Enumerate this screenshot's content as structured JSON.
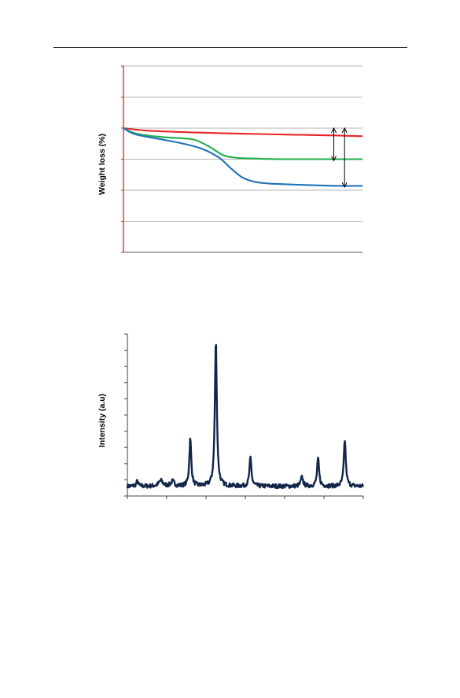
{
  "colors": {
    "red_series": "#e8262a",
    "green_series": "#22ad4a",
    "blue_series": "#1f73b7",
    "xrd_line": "#12264a",
    "grid": "#b3b3b3",
    "axis_red": "#cc2b2b"
  },
  "chart_data": [
    {
      "type": "line",
      "title": "",
      "xlabel": "",
      "ylabel": "Weight loss (%)",
      "grid": true,
      "xlim": [
        0,
        100
      ],
      "ylim": [
        0,
        6
      ],
      "series": [
        {
          "color": "red",
          "x": [
            0,
            10,
            30,
            50,
            70,
            90,
            100
          ],
          "y": [
            4.0,
            3.92,
            3.86,
            3.82,
            3.79,
            3.76,
            3.74
          ]
        },
        {
          "color": "green",
          "x": [
            0,
            5,
            15,
            25,
            30,
            36,
            42,
            48,
            55,
            65,
            80,
            100
          ],
          "y": [
            4.0,
            3.83,
            3.72,
            3.67,
            3.62,
            3.4,
            3.12,
            3.04,
            3.02,
            3.0,
            3.0,
            3.0
          ]
        },
        {
          "color": "blue",
          "x": [
            0,
            5,
            15,
            25,
            33,
            40,
            45,
            50,
            55,
            60,
            65,
            72,
            80,
            90,
            100
          ],
          "y": [
            4.0,
            3.8,
            3.65,
            3.5,
            3.33,
            3.05,
            2.7,
            2.4,
            2.27,
            2.22,
            2.2,
            2.18,
            2.16,
            2.14,
            2.14
          ]
        }
      ],
      "annotations": [
        {
          "type": "double-arrow",
          "x": 88,
          "y_from": 4.0,
          "y_to": 2.95
        },
        {
          "type": "double-arrow",
          "x": 92.5,
          "y_from": 4.0,
          "y_to": 2.1
        }
      ]
    },
    {
      "type": "line",
      "title": "",
      "xlabel": "",
      "ylabel": "Intensity (a.u)",
      "grid": false,
      "xlim": [
        0,
        60
      ],
      "ylim": [
        0,
        10
      ],
      "baseline": 0.6,
      "noise_amplitude": 0.13,
      "peaks": [
        {
          "x": 2.5,
          "height": 0.3,
          "width": 0.6
        },
        {
          "x": 8.5,
          "height": 0.35,
          "width": 1.2
        },
        {
          "x": 11.5,
          "height": 0.3,
          "width": 1.0
        },
        {
          "x": 16.0,
          "height": 2.9,
          "width": 0.6
        },
        {
          "x": 22.5,
          "height": 9.0,
          "width": 0.6
        },
        {
          "x": 31.3,
          "height": 1.75,
          "width": 0.6
        },
        {
          "x": 44.4,
          "height": 0.55,
          "width": 0.7
        },
        {
          "x": 48.5,
          "height": 1.7,
          "width": 0.6
        },
        {
          "x": 55.3,
          "height": 2.85,
          "width": 0.6
        }
      ]
    }
  ]
}
